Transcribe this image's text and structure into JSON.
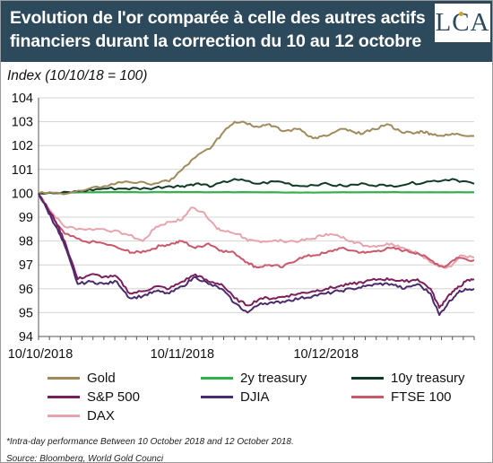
{
  "title": {
    "line1": "Evolution de l'or comparée à celle des autres actifs",
    "line2": "financiers durant la correction du 10 au 12 octobre"
  },
  "logo": {
    "text": "LCA",
    "accent_color": "#c9a227",
    "brand_color": "#2d4a5c"
  },
  "index_label": "Index (10/10/18 = 100)",
  "footnote": "*Intra-day performance Between 10 October 2018 and 12 October 2018.",
  "source": "Source: Bloomberg, World Gold Counci",
  "chart_data": {
    "type": "line",
    "ylabel": "Index (10/10/18 = 100)",
    "ylim": [
      94,
      104
    ],
    "yticks": [
      94,
      95,
      96,
      97,
      98,
      99,
      100,
      101,
      102,
      103,
      104
    ],
    "xlim": [
      0,
      100
    ],
    "x_tick_labels": [
      {
        "label": "10/10/2018",
        "x": 0
      },
      {
        "label": "10/11/2018",
        "x": 33
      },
      {
        "label": "10/12/2018",
        "x": 66
      }
    ],
    "grid": true,
    "legend_position": "bottom",
    "series": [
      {
        "name": "Gold",
        "color": "#a08a5b",
        "x": [
          0,
          5,
          10,
          15,
          20,
          25,
          30,
          33,
          36,
          40,
          43,
          45,
          47,
          50,
          53,
          56,
          60,
          63,
          66,
          70,
          73,
          76,
          80,
          83,
          86,
          88,
          90,
          93,
          96,
          100
        ],
        "values": [
          100,
          100,
          100.1,
          100.3,
          100.5,
          100.4,
          100.5,
          101.0,
          101.5,
          102.0,
          102.7,
          103.0,
          103.0,
          102.8,
          102.9,
          102.6,
          102.7,
          102.3,
          102.4,
          102.7,
          102.5,
          102.6,
          102.9,
          102.6,
          102.5,
          102.6,
          102.5,
          102.4,
          102.5,
          102.4
        ]
      },
      {
        "name": "2y treasury",
        "color": "#2db34a",
        "x": [
          0,
          10,
          20,
          30,
          40,
          50,
          60,
          70,
          80,
          90,
          100
        ],
        "values": [
          100,
          100.05,
          100.05,
          100.05,
          100.05,
          100.05,
          100.03,
          100.05,
          100.05,
          100.05,
          100.05
        ]
      },
      {
        "name": "10y treasury",
        "color": "#0f3a24",
        "x": [
          0,
          5,
          10,
          15,
          20,
          25,
          30,
          33,
          36,
          40,
          45,
          50,
          55,
          60,
          65,
          70,
          75,
          80,
          85,
          90,
          95,
          100
        ],
        "values": [
          100,
          100.0,
          100.1,
          100.2,
          100.2,
          100.2,
          100.3,
          100.3,
          100.4,
          100.3,
          100.6,
          100.4,
          100.5,
          100.3,
          100.4,
          100.3,
          100.4,
          100.3,
          100.4,
          100.5,
          100.6,
          100.4
        ]
      },
      {
        "name": "S&P 500",
        "color": "#7a1f5a",
        "x": [
          0,
          2,
          4,
          6,
          9,
          12,
          15,
          18,
          21,
          24,
          27,
          30,
          33,
          36,
          39,
          42,
          45,
          48,
          51,
          54,
          57,
          60,
          63,
          66,
          69,
          72,
          75,
          78,
          81,
          84,
          87,
          90,
          92,
          94,
          96,
          98,
          100
        ],
        "values": [
          100,
          99.4,
          98.8,
          98.0,
          96.4,
          96.6,
          96.5,
          96.5,
          95.8,
          95.9,
          96.1,
          96.0,
          96.3,
          96.6,
          96.3,
          96.2,
          95.6,
          95.3,
          95.6,
          95.6,
          95.7,
          95.8,
          95.9,
          96.0,
          96.1,
          96.2,
          96.3,
          96.4,
          96.4,
          96.3,
          96.4,
          96.0,
          95.2,
          95.7,
          96.0,
          96.3,
          96.4
        ]
      },
      {
        "name": "DJIA",
        "color": "#4b2a6e",
        "x": [
          0,
          2,
          4,
          6,
          9,
          12,
          15,
          18,
          21,
          24,
          27,
          30,
          33,
          36,
          39,
          42,
          45,
          48,
          51,
          54,
          57,
          60,
          63,
          66,
          69,
          72,
          75,
          78,
          81,
          84,
          87,
          90,
          92,
          94,
          96,
          98,
          100
        ],
        "values": [
          100,
          99.3,
          98.6,
          97.8,
          96.2,
          96.3,
          96.2,
          96.3,
          95.6,
          95.7,
          95.9,
          95.8,
          96.1,
          96.5,
          96.2,
          96.0,
          95.4,
          95.0,
          95.4,
          95.4,
          95.5,
          95.6,
          95.7,
          95.8,
          95.9,
          96.0,
          96.1,
          96.2,
          96.2,
          96.0,
          96.2,
          95.8,
          94.9,
          95.4,
          95.8,
          96.0,
          96.0
        ]
      },
      {
        "name": "FTSE 100",
        "color": "#c8586a",
        "x": [
          0,
          3,
          6,
          10,
          15,
          20,
          22,
          25,
          28,
          31,
          33,
          36,
          39,
          42,
          45,
          48,
          50,
          53,
          56,
          60,
          63,
          66,
          69,
          72,
          75,
          78,
          81,
          84,
          87,
          90,
          93,
          96,
          100
        ],
        "values": [
          100,
          99.0,
          98.3,
          98.0,
          97.9,
          97.6,
          97.5,
          97.6,
          97.8,
          97.9,
          98.0,
          97.7,
          97.9,
          97.6,
          97.5,
          97.1,
          96.9,
          97.0,
          96.9,
          97.3,
          97.4,
          97.5,
          97.7,
          97.6,
          97.5,
          97.6,
          97.7,
          97.6,
          97.5,
          97.2,
          96.9,
          97.3,
          97.2
        ]
      },
      {
        "name": "DAX",
        "color": "#e8a4ae",
        "x": [
          0,
          3,
          6,
          10,
          15,
          20,
          24,
          27,
          30,
          33,
          35,
          38,
          41,
          43,
          46,
          48,
          50,
          53,
          56,
          60,
          63,
          66,
          69,
          72,
          75,
          78,
          81,
          84,
          87,
          90,
          93,
          95,
          97,
          100
        ],
        "values": [
          100,
          99.2,
          98.6,
          98.5,
          98.5,
          98.3,
          98.0,
          98.6,
          98.8,
          98.9,
          99.4,
          99.2,
          98.5,
          98.4,
          98.3,
          98.0,
          98.0,
          98.0,
          98.0,
          98.0,
          98.1,
          98.3,
          98.2,
          98.0,
          97.8,
          97.8,
          97.9,
          97.7,
          97.5,
          97.1,
          96.9,
          97.0,
          97.4,
          97.3
        ]
      }
    ]
  }
}
